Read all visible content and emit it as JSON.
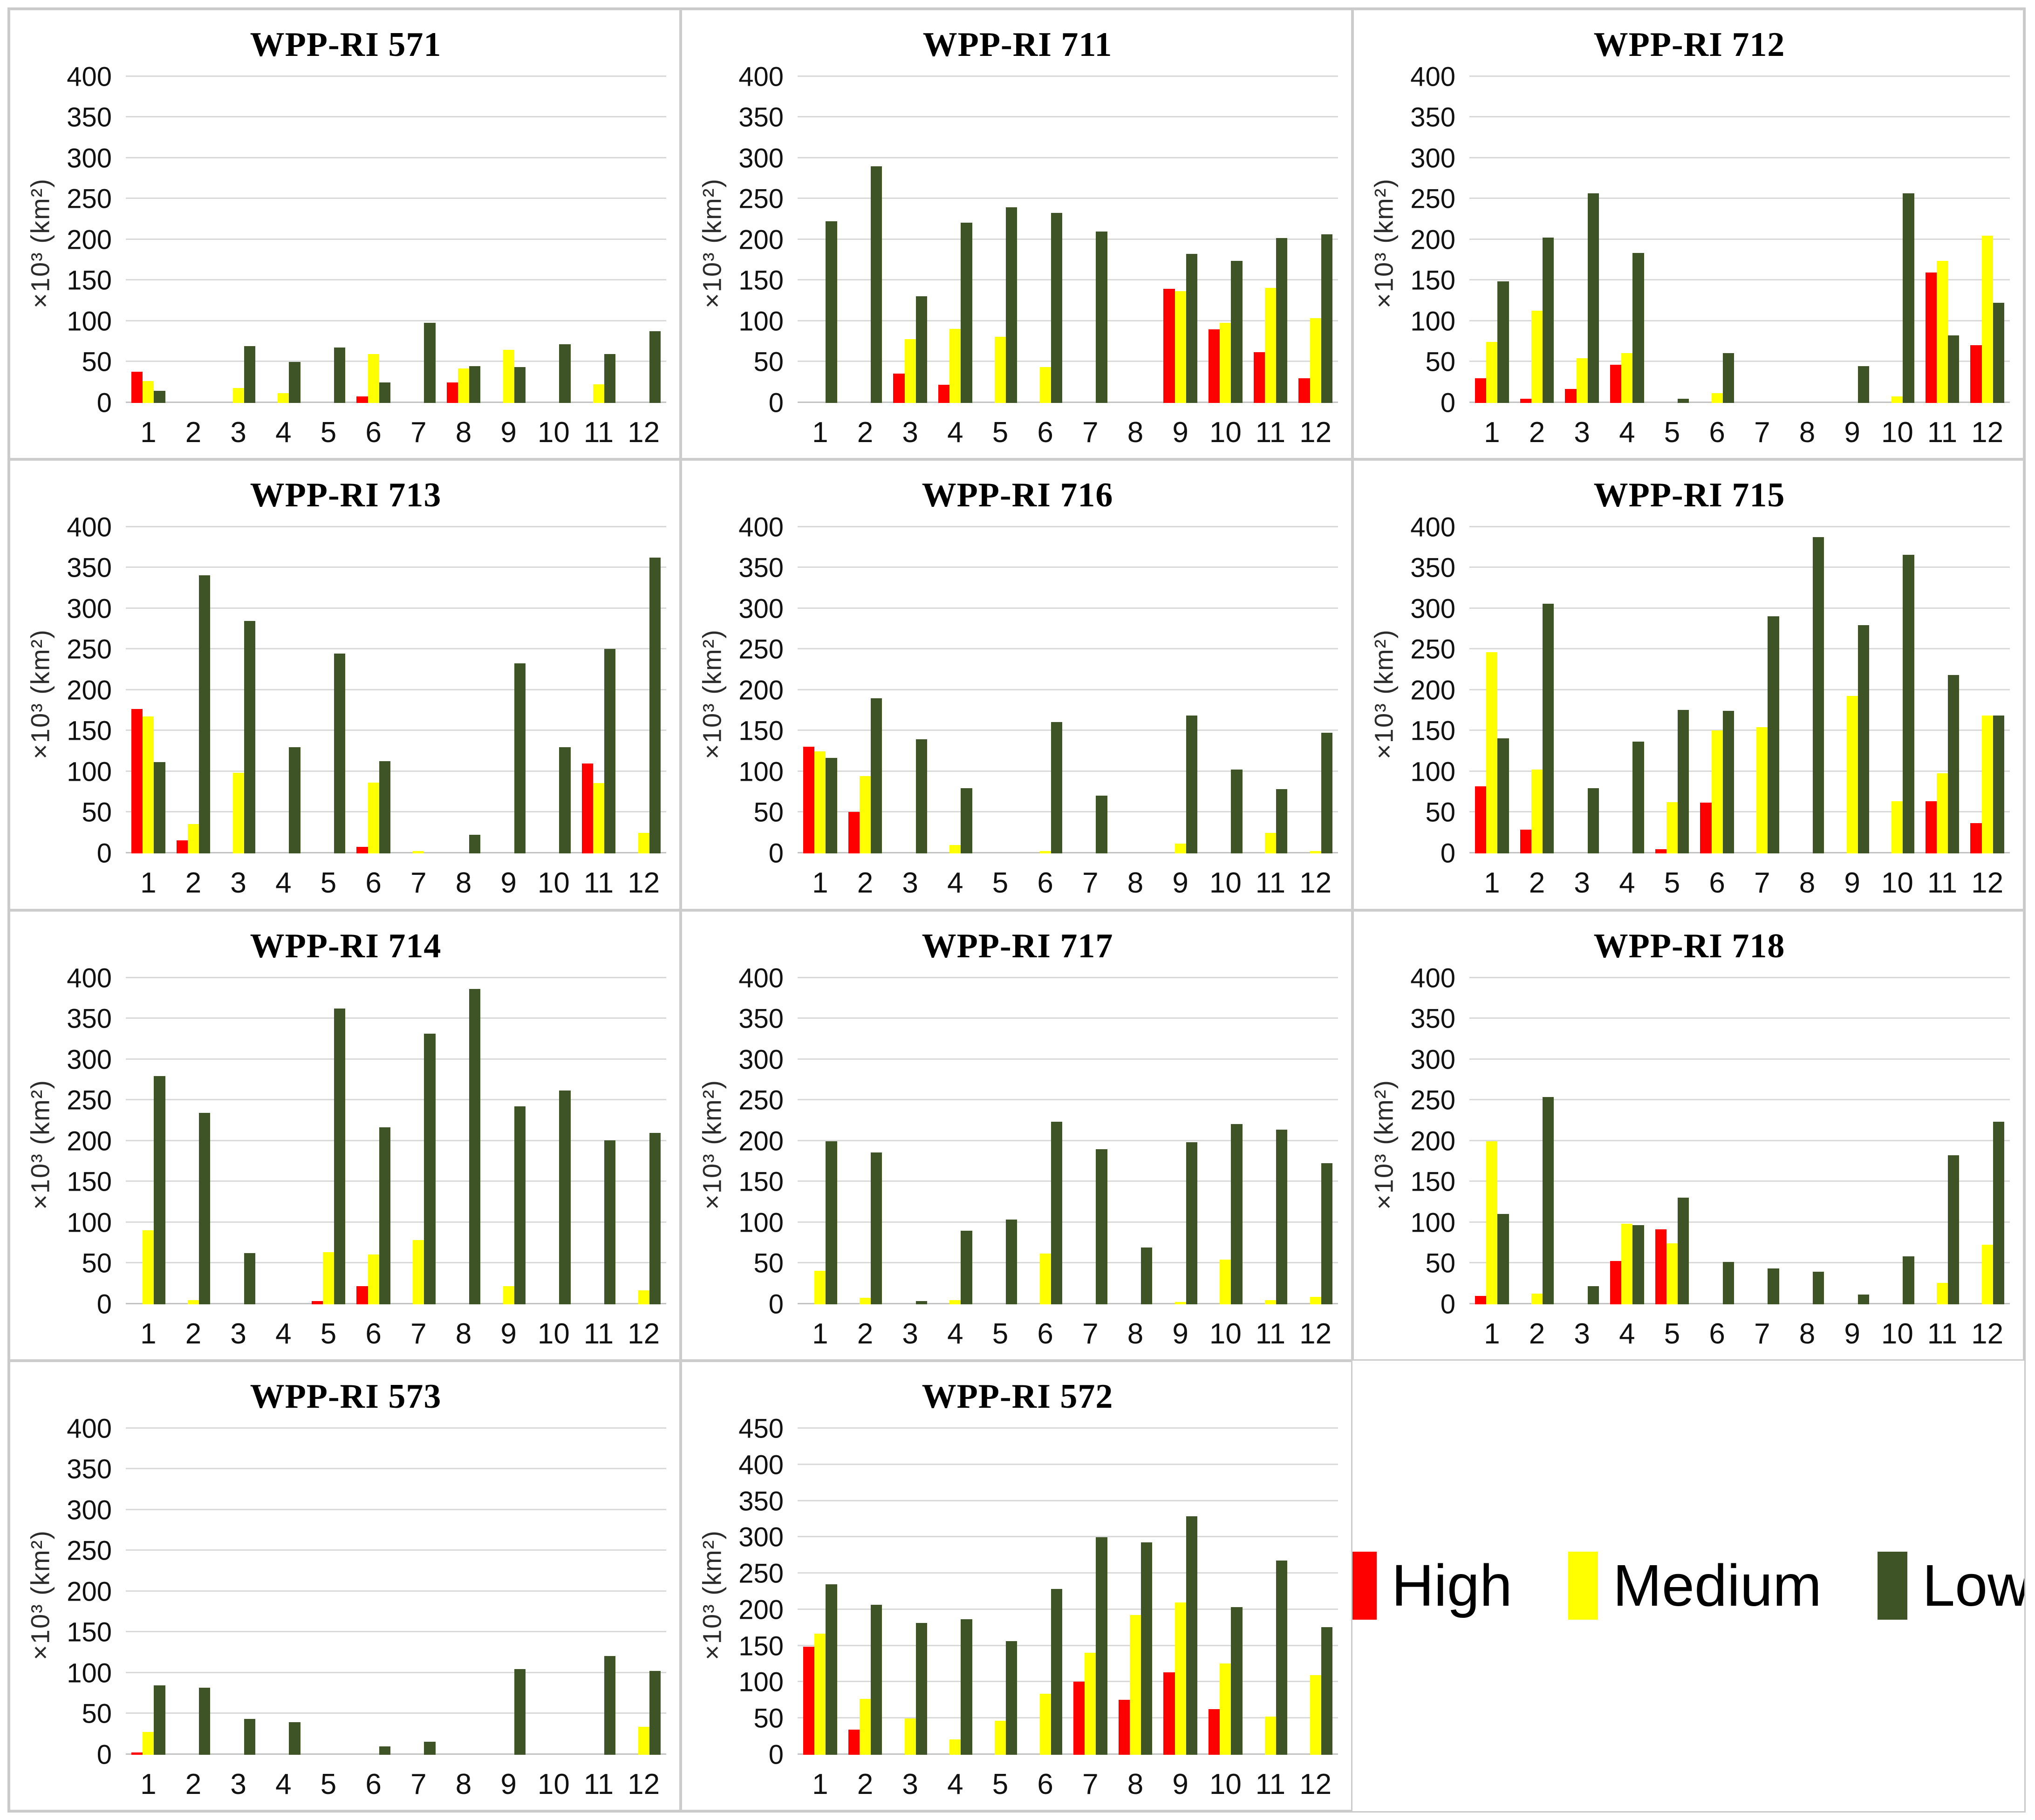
{
  "figure": {
    "background": "#ffffff",
    "border_color": "#c9c9c9",
    "gridline_color": "#d9d9d9"
  },
  "colors": {
    "high": "#ff0000",
    "medium": "#ffff00",
    "low": "#3e5426"
  },
  "legend": {
    "items": [
      {
        "label": "High",
        "color": "#ff0000"
      },
      {
        "label": "Medium",
        "color": "#ffff00"
      },
      {
        "label": "Low",
        "color": "#3e5426"
      }
    ]
  },
  "y_axis_label": "×10³ (km²)",
  "chart_data": [
    {
      "type": "bar",
      "title": "WPP-RI 571",
      "ylabel": "×10³ (km²)",
      "ylim": [
        0,
        400
      ],
      "ytick_step": 50,
      "grid": true,
      "categories": [
        "1",
        "2",
        "3",
        "4",
        "5",
        "6",
        "7",
        "8",
        "9",
        "10",
        "11",
        "12"
      ],
      "series": [
        {
          "name": "High",
          "color": "#ff0000",
          "values": [
            38,
            0,
            0,
            0,
            0,
            8,
            0,
            25,
            0,
            0,
            0,
            0
          ]
        },
        {
          "name": "Medium",
          "color": "#ffff00",
          "values": [
            27,
            0,
            18,
            12,
            0,
            60,
            0,
            42,
            65,
            0,
            23,
            0
          ]
        },
        {
          "name": "Low",
          "color": "#3e5426",
          "values": [
            15,
            0,
            70,
            50,
            68,
            25,
            98,
            45,
            44,
            72,
            60,
            88
          ]
        }
      ]
    },
    {
      "type": "bar",
      "title": "WPP-RI 711",
      "ylabel": "×10³ (km²)",
      "ylim": [
        0,
        400
      ],
      "ytick_step": 50,
      "grid": true,
      "categories": [
        "1",
        "2",
        "3",
        "4",
        "5",
        "6",
        "7",
        "8",
        "9",
        "10",
        "11",
        "12"
      ],
      "series": [
        {
          "name": "High",
          "color": "#ff0000",
          "values": [
            0,
            0,
            36,
            22,
            0,
            0,
            0,
            0,
            140,
            90,
            62,
            30
          ]
        },
        {
          "name": "Medium",
          "color": "#ffff00",
          "values": [
            0,
            0,
            78,
            91,
            81,
            44,
            0,
            0,
            137,
            98,
            141,
            104
          ]
        },
        {
          "name": "Low",
          "color": "#3e5426",
          "values": [
            223,
            290,
            131,
            221,
            240,
            233,
            210,
            0,
            183,
            174,
            202,
            207
          ]
        }
      ]
    },
    {
      "type": "bar",
      "title": "WPP-RI 712",
      "ylabel": "×10³ (km²)",
      "ylim": [
        0,
        400
      ],
      "ytick_step": 50,
      "grid": true,
      "categories": [
        "1",
        "2",
        "3",
        "4",
        "5",
        "6",
        "7",
        "8",
        "9",
        "10",
        "11",
        "12"
      ],
      "series": [
        {
          "name": "High",
          "color": "#ff0000",
          "values": [
            30,
            5,
            17,
            47,
            0,
            0,
            0,
            0,
            0,
            0,
            160,
            71
          ]
        },
        {
          "name": "Medium",
          "color": "#ffff00",
          "values": [
            75,
            113,
            55,
            61,
            0,
            12,
            0,
            0,
            0,
            8,
            174,
            205
          ]
        },
        {
          "name": "Low",
          "color": "#3e5426",
          "values": [
            149,
            203,
            257,
            184,
            5,
            61,
            0,
            0,
            45,
            257,
            83,
            123
          ]
        }
      ]
    },
    {
      "type": "bar",
      "title": "WPP-RI 713",
      "ylabel": "×10³ (km²)",
      "ylim": [
        0,
        400
      ],
      "ytick_step": 50,
      "grid": true,
      "categories": [
        "1",
        "2",
        "3",
        "4",
        "5",
        "6",
        "7",
        "8",
        "9",
        "10",
        "11",
        "12"
      ],
      "series": [
        {
          "name": "High",
          "color": "#ff0000",
          "values": [
            177,
            16,
            0,
            0,
            0,
            8,
            0,
            0,
            0,
            0,
            110,
            0
          ]
        },
        {
          "name": "Medium",
          "color": "#ffff00",
          "values": [
            168,
            36,
            99,
            0,
            0,
            87,
            2,
            0,
            0,
            0,
            86,
            25
          ]
        },
        {
          "name": "Low",
          "color": "#3e5426",
          "values": [
            112,
            341,
            285,
            130,
            245,
            113,
            0,
            23,
            233,
            130,
            251,
            363
          ]
        }
      ]
    },
    {
      "type": "bar",
      "title": "WPP-RI 716",
      "ylabel": "×10³ (km²)",
      "ylim": [
        0,
        400
      ],
      "ytick_step": 50,
      "grid": true,
      "categories": [
        "1",
        "2",
        "3",
        "4",
        "5",
        "6",
        "7",
        "8",
        "9",
        "10",
        "11",
        "12"
      ],
      "series": [
        {
          "name": "High",
          "color": "#ff0000",
          "values": [
            131,
            51,
            0,
            0,
            0,
            0,
            0,
            0,
            0,
            0,
            0,
            0
          ]
        },
        {
          "name": "Medium",
          "color": "#ffff00",
          "values": [
            125,
            95,
            0,
            10,
            0,
            3,
            0,
            0,
            12,
            0,
            25,
            2
          ]
        },
        {
          "name": "Low",
          "color": "#3e5426",
          "values": [
            117,
            190,
            140,
            80,
            0,
            161,
            71,
            0,
            169,
            103,
            79,
            148
          ]
        }
      ]
    },
    {
      "type": "bar",
      "title": "WPP-RI 715",
      "ylabel": "×10³ (km²)",
      "ylim": [
        0,
        400
      ],
      "ytick_step": 50,
      "grid": true,
      "categories": [
        "1",
        "2",
        "3",
        "4",
        "5",
        "6",
        "7",
        "8",
        "9",
        "10",
        "11",
        "12"
      ],
      "series": [
        {
          "name": "High",
          "color": "#ff0000",
          "values": [
            82,
            29,
            0,
            0,
            5,
            62,
            0,
            0,
            0,
            0,
            64,
            37
          ]
        },
        {
          "name": "Medium",
          "color": "#ffff00",
          "values": [
            247,
            103,
            0,
            0,
            63,
            151,
            155,
            0,
            193,
            64,
            98,
            169
          ]
        },
        {
          "name": "Low",
          "color": "#3e5426",
          "values": [
            141,
            306,
            80,
            137,
            176,
            175,
            291,
            388,
            280,
            366,
            219,
            169
          ]
        }
      ]
    },
    {
      "type": "bar",
      "title": "WPP-RI 714",
      "ylabel": "×10³ (km²)",
      "ylim": [
        0,
        400
      ],
      "ytick_step": 50,
      "grid": true,
      "categories": [
        "1",
        "2",
        "3",
        "4",
        "5",
        "6",
        "7",
        "8",
        "9",
        "10",
        "11",
        "12"
      ],
      "series": [
        {
          "name": "High",
          "color": "#ff0000",
          "values": [
            0,
            0,
            0,
            0,
            4,
            22,
            0,
            0,
            0,
            0,
            0,
            0
          ]
        },
        {
          "name": "Medium",
          "color": "#ffff00",
          "values": [
            91,
            5,
            0,
            0,
            64,
            61,
            79,
            0,
            22,
            0,
            0,
            17
          ]
        },
        {
          "name": "Low",
          "color": "#3e5426",
          "values": [
            280,
            235,
            63,
            0,
            363,
            217,
            332,
            387,
            243,
            262,
            201,
            210
          ]
        }
      ]
    },
    {
      "type": "bar",
      "title": "WPP-RI 717",
      "ylabel": "×10³ (km²)",
      "ylim": [
        0,
        400
      ],
      "ytick_step": 50,
      "grid": true,
      "categories": [
        "1",
        "2",
        "3",
        "4",
        "5",
        "6",
        "7",
        "8",
        "9",
        "10",
        "11",
        "12"
      ],
      "series": [
        {
          "name": "High",
          "color": "#ff0000",
          "values": [
            0,
            0,
            0,
            0,
            0,
            0,
            0,
            0,
            0,
            0,
            0,
            0
          ]
        },
        {
          "name": "Medium",
          "color": "#ffff00",
          "values": [
            41,
            8,
            0,
            5,
            0,
            62,
            0,
            0,
            2,
            55,
            5,
            9
          ]
        },
        {
          "name": "Low",
          "color": "#3e5426",
          "values": [
            200,
            186,
            4,
            90,
            104,
            224,
            190,
            70,
            199,
            221,
            214,
            173
          ]
        }
      ]
    },
    {
      "type": "bar",
      "title": "WPP-RI 718",
      "ylabel": "×10³ (km²)",
      "ylim": [
        0,
        400
      ],
      "ytick_step": 50,
      "grid": true,
      "categories": [
        "1",
        "2",
        "3",
        "4",
        "5",
        "6",
        "7",
        "8",
        "9",
        "10",
        "11",
        "12"
      ],
      "series": [
        {
          "name": "High",
          "color": "#ff0000",
          "values": [
            10,
            0,
            0,
            53,
            92,
            0,
            0,
            0,
            0,
            0,
            0,
            0
          ]
        },
        {
          "name": "Medium",
          "color": "#ffff00",
          "values": [
            200,
            13,
            0,
            99,
            75,
            0,
            0,
            0,
            0,
            0,
            26,
            73
          ]
        },
        {
          "name": "Low",
          "color": "#3e5426",
          "values": [
            111,
            254,
            22,
            97,
            131,
            52,
            44,
            40,
            12,
            59,
            183,
            224
          ]
        }
      ]
    },
    {
      "type": "bar",
      "title": "WPP-RI 573",
      "ylabel": "×10³ (km²)",
      "ylim": [
        0,
        400
      ],
      "ytick_step": 50,
      "grid": true,
      "categories": [
        "1",
        "2",
        "3",
        "4",
        "5",
        "6",
        "7",
        "8",
        "9",
        "10",
        "11",
        "12"
      ],
      "series": [
        {
          "name": "High",
          "color": "#ff0000",
          "values": [
            3,
            0,
            0,
            0,
            0,
            0,
            0,
            0,
            0,
            0,
            0,
            0
          ]
        },
        {
          "name": "Medium",
          "color": "#ffff00",
          "values": [
            28,
            0,
            0,
            0,
            0,
            0,
            0,
            0,
            0,
            0,
            0,
            34
          ]
        },
        {
          "name": "Low",
          "color": "#3e5426",
          "values": [
            85,
            82,
            44,
            40,
            0,
            10,
            16,
            0,
            105,
            0,
            121,
            103
          ]
        }
      ]
    },
    {
      "type": "bar",
      "title": "WPP-RI 572",
      "ylabel": "×10³ (km²)",
      "ylim": [
        0,
        450
      ],
      "ytick_step": 50,
      "grid": true,
      "categories": [
        "1",
        "2",
        "3",
        "4",
        "5",
        "6",
        "7",
        "8",
        "9",
        "10",
        "11",
        "12"
      ],
      "series": [
        {
          "name": "High",
          "color": "#ff0000",
          "values": [
            149,
            35,
            0,
            0,
            0,
            0,
            101,
            76,
            114,
            63,
            0,
            0
          ]
        },
        {
          "name": "Medium",
          "color": "#ffff00",
          "values": [
            167,
            77,
            50,
            21,
            47,
            84,
            141,
            193,
            210,
            126,
            53,
            110
          ]
        },
        {
          "name": "Low",
          "color": "#3e5426",
          "values": [
            235,
            207,
            182,
            187,
            157,
            229,
            300,
            293,
            329,
            204,
            268,
            176
          ]
        }
      ]
    }
  ]
}
